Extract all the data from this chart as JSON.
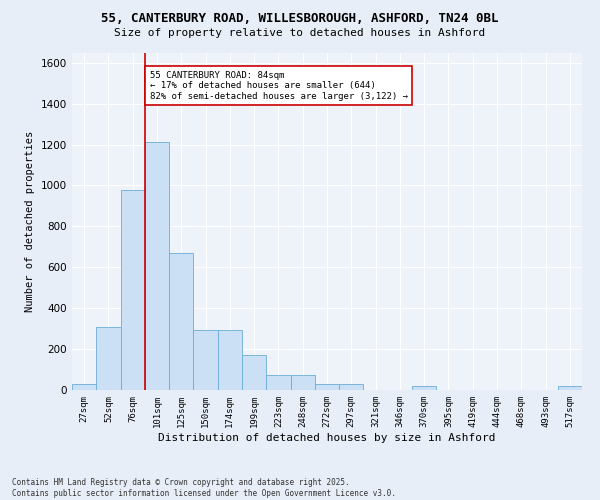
{
  "title1": "55, CANTERBURY ROAD, WILLESBOROUGH, ASHFORD, TN24 0BL",
  "title2": "Size of property relative to detached houses in Ashford",
  "xlabel": "Distribution of detached houses by size in Ashford",
  "ylabel": "Number of detached properties",
  "categories": [
    "27sqm",
    "52sqm",
    "76sqm",
    "101sqm",
    "125sqm",
    "150sqm",
    "174sqm",
    "199sqm",
    "223sqm",
    "248sqm",
    "272sqm",
    "297sqm",
    "321sqm",
    "346sqm",
    "370sqm",
    "395sqm",
    "419sqm",
    "444sqm",
    "468sqm",
    "493sqm",
    "517sqm"
  ],
  "values": [
    30,
    310,
    980,
    1210,
    670,
    295,
    295,
    170,
    75,
    75,
    30,
    30,
    0,
    0,
    20,
    0,
    0,
    0,
    0,
    0,
    20
  ],
  "bar_color": "#cce0f5",
  "bar_edge_color": "#6aaed6",
  "vline_x_index": 2.5,
  "vline_color": "#cc0000",
  "annotation_text": "55 CANTERBURY ROAD: 84sqm\n← 17% of detached houses are smaller (644)\n82% of semi-detached houses are larger (3,122) →",
  "annotation_box_color": "#ffffff",
  "annotation_box_edge": "#cc0000",
  "ylim": [
    0,
    1650
  ],
  "yticks": [
    0,
    200,
    400,
    600,
    800,
    1000,
    1200,
    1400,
    1600
  ],
  "bg_color": "#e8eef7",
  "plot_bg_color": "#eef2f9",
  "footer1": "Contains HM Land Registry data © Crown copyright and database right 2025.",
  "footer2": "Contains public sector information licensed under the Open Government Licence v3.0."
}
